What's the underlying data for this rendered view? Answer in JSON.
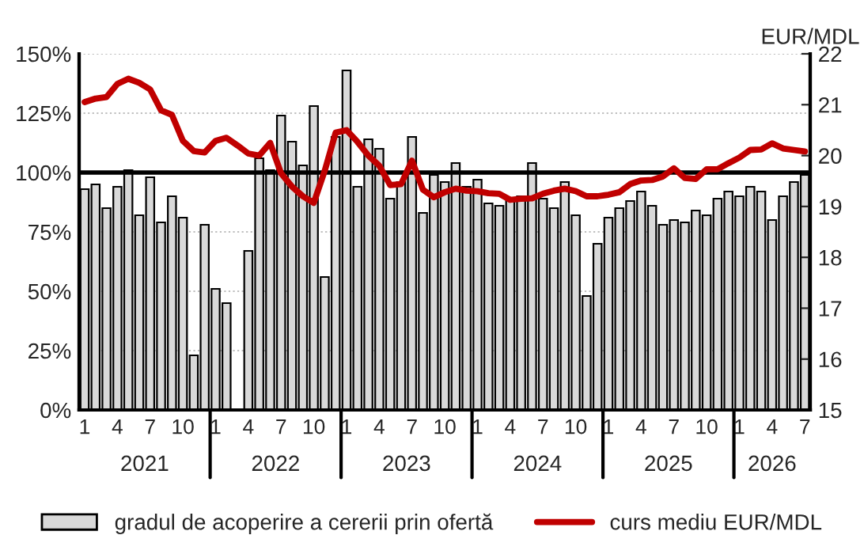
{
  "chart_data": {
    "type": "bar",
    "x": [
      "2021-01",
      "2021-02",
      "2021-03",
      "2021-04",
      "2021-05",
      "2021-06",
      "2021-07",
      "2021-08",
      "2021-09",
      "2021-10",
      "2021-11",
      "2021-12",
      "2022-01",
      "2022-02",
      "2022-03",
      "2022-04",
      "2022-05",
      "2022-06",
      "2022-07",
      "2022-08",
      "2022-09",
      "2022-10",
      "2022-11",
      "2022-12",
      "2023-01",
      "2023-02",
      "2023-03",
      "2023-04",
      "2023-05",
      "2023-06",
      "2023-07",
      "2023-08",
      "2023-09",
      "2023-10",
      "2023-11",
      "2023-12",
      "2024-01",
      "2024-02",
      "2024-03",
      "2024-04",
      "2024-05",
      "2024-06",
      "2024-07",
      "2024-08",
      "2024-09",
      "2024-10",
      "2024-11",
      "2024-12",
      "2025-01",
      "2025-02",
      "2025-03",
      "2025-04",
      "2025-05",
      "2025-06",
      "2025-07",
      "2025-08",
      "2025-09",
      "2025-10",
      "2025-11",
      "2025-12",
      "2026-01",
      "2026-02",
      "2026-03",
      "2026-04",
      "2026-05",
      "2026-06",
      "2026-07"
    ],
    "series": [
      {
        "name": "gradul de acoperire a cererii prin ofertă",
        "type": "bar",
        "color": "#d9d9d9",
        "values": [
          93,
          95,
          85,
          94,
          101,
          82,
          98,
          79,
          90,
          81,
          23,
          78,
          51,
          45,
          null,
          67,
          106,
          101,
          124,
          113,
          103,
          128,
          56,
          115,
          143,
          94,
          114,
          110,
          89,
          96,
          115,
          83,
          99,
          96,
          104,
          94,
          97,
          87,
          86,
          89,
          90,
          104,
          89,
          85,
          96,
          82,
          48,
          70,
          81,
          85,
          88,
          92,
          86,
          78,
          80,
          79,
          84,
          82,
          89,
          92,
          90,
          94,
          92,
          80,
          90,
          96,
          99
        ]
      },
      {
        "name": "curs mediu EUR/MDL",
        "type": "line",
        "axis": "y2",
        "color": "#c00000",
        "values": [
          21.05,
          21.12,
          21.15,
          21.41,
          21.51,
          21.43,
          21.3,
          20.89,
          20.8,
          20.29,
          20.09,
          20.06,
          20.29,
          20.35,
          20.2,
          20.04,
          20.0,
          20.25,
          19.65,
          19.39,
          19.2,
          19.07,
          19.7,
          20.45,
          20.5,
          20.27,
          20.0,
          19.8,
          19.42,
          19.44,
          19.9,
          19.33,
          19.18,
          19.28,
          19.35,
          19.31,
          19.3,
          19.26,
          19.25,
          19.13,
          19.15,
          19.16,
          19.25,
          19.31,
          19.35,
          19.3,
          19.2,
          19.2,
          19.23,
          19.28,
          19.44,
          19.51,
          19.52,
          19.59,
          19.75,
          19.56,
          19.54,
          19.73,
          19.73,
          19.85,
          19.96,
          20.11,
          20.12,
          20.24,
          20.14,
          20.11,
          20.08
        ]
      }
    ],
    "xticks": [
      {
        "value": "2021-01",
        "label": "1"
      },
      {
        "value": "2021-04",
        "label": "4"
      },
      {
        "value": "2021-07",
        "label": "7"
      },
      {
        "value": "2021-10",
        "label": "10"
      },
      {
        "value": "2022-01",
        "label": "1"
      },
      {
        "value": "2022-04",
        "label": "4"
      },
      {
        "value": "2022-07",
        "label": "7"
      },
      {
        "value": "2022-10",
        "label": "10"
      },
      {
        "value": "2023-01",
        "label": "1"
      },
      {
        "value": "2023-04",
        "label": "4"
      },
      {
        "value": "2023-07",
        "label": "7"
      },
      {
        "value": "2023-10",
        "label": "10"
      },
      {
        "value": "2024-01",
        "label": "1"
      },
      {
        "value": "2024-04",
        "label": "4"
      },
      {
        "value": "2024-07",
        "label": "7"
      },
      {
        "value": "2024-10",
        "label": "10"
      },
      {
        "value": "2025-01",
        "label": "1"
      },
      {
        "value": "2025-04",
        "label": "4"
      },
      {
        "value": "2025-07",
        "label": "7"
      },
      {
        "value": "2025-10",
        "label": "10"
      },
      {
        "value": "2026-01",
        "label": "1"
      },
      {
        "value": "2026-04",
        "label": "4"
      },
      {
        "value": "2026-07",
        "label": "7"
      }
    ],
    "xlim": [
      "2020-12-16",
      "2026-07-16"
    ],
    "ylim": [
      0,
      150
    ],
    "yticks": [
      {
        "value": 0,
        "label": "0%"
      },
      {
        "value": 25,
        "label": "25%"
      },
      {
        "value": 50,
        "label": "50%"
      },
      {
        "value": 75,
        "label": "75%"
      },
      {
        "value": 100,
        "label": "100%"
      },
      {
        "value": 125,
        "label": "125%"
      },
      {
        "value": 150,
        "label": "150%"
      }
    ],
    "y2lim": [
      15,
      22
    ],
    "y2ticks": [
      15,
      16,
      17,
      18,
      19,
      20,
      21,
      22
    ],
    "y2label": "EUR/MDL",
    "annotations": [
      "2021",
      "2022",
      "2023",
      "2024",
      "2025",
      "2026"
    ],
    "ref_lines": [
      {
        "axis": "y",
        "value": 100,
        "color": "#000000"
      }
    ],
    "grid": "y",
    "legend": "bottom"
  }
}
